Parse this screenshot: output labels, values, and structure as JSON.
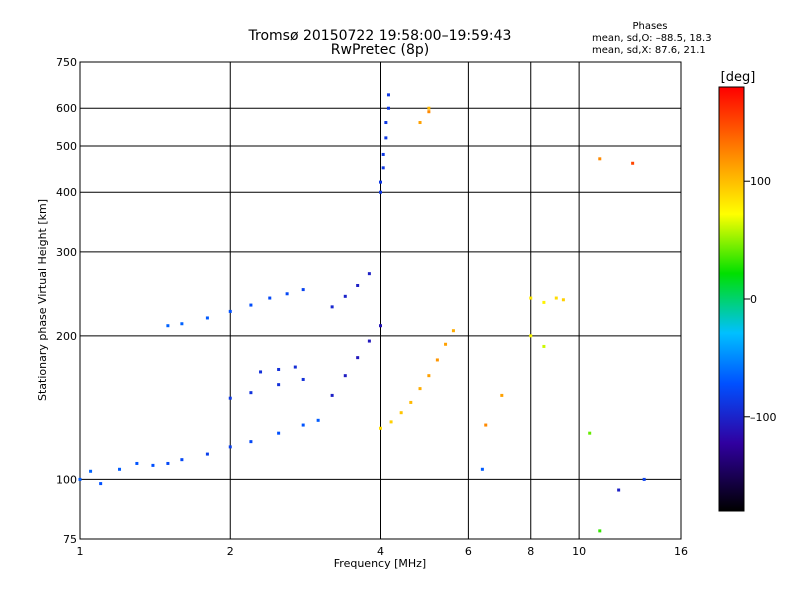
{
  "header": {
    "title_line1": "Tromsø 20150722 19:58:00–19:59:43",
    "title_line2": "RwPretec (8p)"
  },
  "phases_legend": {
    "title": "Phases",
    "o_line": "mean, sd,O: –88.5, 18.3",
    "x_line": "mean, sd,X:  87.6, 21.1"
  },
  "colorbar": {
    "unit": "[deg]",
    "ticks": [
      {
        "value": 100,
        "label": "100"
      },
      {
        "value": 0,
        "label": "0"
      },
      {
        "value": -100,
        "label": "–100"
      }
    ],
    "range": [
      -180,
      180
    ]
  },
  "chart_data": {
    "type": "scatter",
    "title": "Tromsø 20150722 19:58:00–19:59:43",
    "subtitle": "RwPretec (8p)",
    "xlabel": "Frequency [MHz]",
    "ylabel": "Stationary phase Virtual Height [km]",
    "xscale": "log",
    "yscale": "log",
    "xlim": [
      1,
      16
    ],
    "ylim": [
      75,
      750
    ],
    "xticks": [
      1,
      2,
      4,
      6,
      8,
      10,
      16
    ],
    "xtick_labels": [
      "1",
      "2",
      "4",
      "6",
      "8",
      "10",
      "16"
    ],
    "yticks": [
      75,
      100,
      200,
      300,
      400,
      500,
      600,
      750
    ],
    "ytick_labels": [
      "75",
      "100",
      "200",
      "300",
      "400",
      "500",
      "600",
      "750"
    ],
    "grid": true,
    "color_encoding": "phase [deg]",
    "series": [
      {
        "points": [
          [
            1.0,
            100,
            -75
          ],
          [
            1.05,
            104,
            -72
          ],
          [
            1.1,
            98,
            -80
          ],
          [
            1.2,
            105,
            -75
          ],
          [
            1.3,
            108,
            -78
          ],
          [
            1.4,
            107,
            -80
          ],
          [
            1.5,
            108,
            -85
          ],
          [
            1.6,
            110,
            -85
          ],
          [
            1.8,
            113,
            -90
          ],
          [
            2.0,
            117,
            -90
          ],
          [
            2.2,
            120,
            -85
          ],
          [
            2.5,
            125,
            -80
          ],
          [
            2.8,
            130,
            -78
          ],
          [
            3.0,
            133,
            -75
          ]
        ]
      },
      {
        "points": [
          [
            1.5,
            210,
            -72
          ],
          [
            1.6,
            212,
            -72
          ],
          [
            1.8,
            218,
            -75
          ],
          [
            2.0,
            225,
            -80
          ],
          [
            2.2,
            232,
            -82
          ],
          [
            2.4,
            240,
            -85
          ],
          [
            2.6,
            245,
            -85
          ],
          [
            2.8,
            250,
            -88
          ]
        ]
      },
      {
        "points": [
          [
            2.0,
            148,
            -95
          ],
          [
            2.2,
            152,
            -98
          ],
          [
            2.5,
            158,
            -100
          ],
          [
            2.8,
            162,
            -100
          ]
        ]
      },
      {
        "points": [
          [
            2.3,
            168,
            -100
          ],
          [
            2.5,
            170,
            -100
          ],
          [
            2.7,
            172,
            -102
          ]
        ]
      },
      {
        "points": [
          [
            3.2,
            230,
            -105
          ],
          [
            3.4,
            242,
            -108
          ],
          [
            3.6,
            255,
            -110
          ],
          [
            3.8,
            270,
            -110
          ]
        ]
      },
      {
        "points": [
          [
            3.2,
            150,
            -110
          ],
          [
            3.4,
            165,
            -112
          ],
          [
            3.6,
            180,
            -115
          ],
          [
            3.8,
            195,
            -115
          ],
          [
            4.0,
            210,
            -118
          ]
        ]
      },
      {
        "points": [
          [
            4.0,
            400,
            -95
          ],
          [
            4.0,
            420,
            -95
          ],
          [
            4.05,
            450,
            -95
          ],
          [
            4.05,
            480,
            -95
          ],
          [
            4.1,
            520,
            -95
          ],
          [
            4.1,
            560,
            -95
          ],
          [
            4.15,
            600,
            -95
          ],
          [
            4.15,
            640,
            -95
          ]
        ]
      },
      {
        "points": [
          [
            4.0,
            128,
            85
          ],
          [
            4.2,
            132,
            90
          ],
          [
            4.4,
            138,
            95
          ],
          [
            4.6,
            145,
            100
          ],
          [
            4.8,
            155,
            105
          ],
          [
            5.0,
            165,
            110
          ],
          [
            5.2,
            178,
            115
          ],
          [
            5.4,
            192,
            110
          ],
          [
            5.6,
            205,
            105
          ]
        ]
      },
      {
        "points": [
          [
            4.8,
            560,
            110
          ],
          [
            5.0,
            590,
            120
          ],
          [
            5.0,
            600,
            100
          ]
        ]
      },
      {
        "points": [
          [
            8.0,
            240,
            80
          ],
          [
            8.5,
            235,
            75
          ],
          [
            9.0,
            240,
            85
          ],
          [
            9.3,
            238,
            90
          ]
        ]
      },
      {
        "points": [
          [
            8.0,
            200,
            70
          ],
          [
            8.5,
            190,
            60
          ],
          [
            7.0,
            150,
            110
          ],
          [
            6.5,
            130,
            120
          ],
          [
            6.4,
            105,
            -75
          ],
          [
            10.5,
            125,
            40
          ],
          [
            11.0,
            78,
            30
          ],
          [
            12.0,
            95,
            -110
          ],
          [
            13.5,
            100,
            -90
          ],
          [
            11.0,
            470,
            120
          ],
          [
            12.8,
            460,
            150
          ]
        ]
      }
    ]
  }
}
